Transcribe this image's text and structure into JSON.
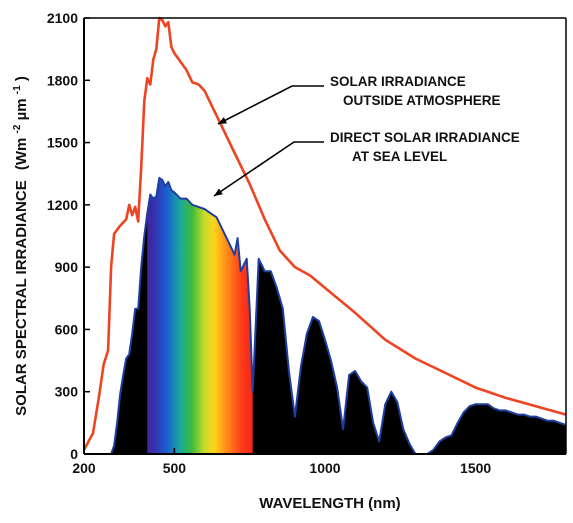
{
  "chart_data": {
    "type": "area",
    "xlabel": "WAVELENGTH (nm)",
    "ylabel": "SOLAR SPECTRAL IRRADIANCE",
    "ylabel_unit": {
      "prefix": "(Wm",
      "exp1": "-2",
      "mid": "µm",
      "exp2": "-1",
      "suffix": ")"
    },
    "xlim": [
      200,
      1800
    ],
    "ylim": [
      0,
      2100
    ],
    "x_ticks": [
      200,
      500,
      1000,
      1500
    ],
    "y_ticks": [
      0,
      300,
      600,
      900,
      1200,
      1500,
      1800,
      2100
    ],
    "colors": {
      "outside": "#ee4422",
      "sea_level": "#000000",
      "sea_level_edge": "#1f3fa0"
    },
    "annotations": [
      {
        "lines": [
          "SOLAR IRRADIANCE",
          "OUTSIDE ATMOSPHERE"
        ],
        "series": "outside"
      },
      {
        "lines": [
          "DIRECT SOLAR IRRADIANCE",
          "AT SEA LEVEL"
        ],
        "series": "sea_level"
      }
    ],
    "series": [
      {
        "id": "outside",
        "x": [
          200,
          215,
          230,
          250,
          265,
          280,
          290,
          300,
          310,
          320,
          340,
          350,
          360,
          370,
          380,
          390,
          400,
          410,
          420,
          430,
          440,
          450,
          460,
          470,
          480,
          490,
          500,
          520,
          540,
          560,
          580,
          600,
          650,
          700,
          750,
          800,
          850,
          900,
          950,
          1000,
          1100,
          1200,
          1300,
          1400,
          1500,
          1600,
          1700,
          1800
        ],
        "y": [
          20,
          60,
          100,
          280,
          430,
          500,
          900,
          1060,
          1080,
          1100,
          1130,
          1200,
          1150,
          1190,
          1120,
          1380,
          1700,
          1810,
          1780,
          1900,
          1950,
          2100,
          2090,
          2060,
          2080,
          1960,
          1930,
          1890,
          1850,
          1790,
          1780,
          1750,
          1600,
          1450,
          1300,
          1130,
          980,
          900,
          860,
          800,
          680,
          550,
          460,
          390,
          320,
          270,
          230,
          190
        ]
      },
      {
        "id": "sea_level",
        "x": [
          290,
          300,
          310,
          320,
          330,
          340,
          350,
          360,
          370,
          380,
          390,
          400,
          410,
          420,
          430,
          440,
          450,
          460,
          470,
          480,
          490,
          500,
          520,
          540,
          560,
          580,
          600,
          620,
          640,
          660,
          680,
          700,
          710,
          720,
          740,
          750,
          760,
          780,
          800,
          820,
          840,
          860,
          880,
          900,
          920,
          940,
          960,
          980,
          1000,
          1020,
          1040,
          1060,
          1080,
          1100,
          1120,
          1140,
          1160,
          1180,
          1200,
          1220,
          1240,
          1260,
          1280,
          1300,
          1320,
          1340,
          1360,
          1380,
          1400,
          1420,
          1440,
          1460,
          1480,
          1500,
          1520,
          1540,
          1560,
          1580,
          1600,
          1620,
          1640,
          1660,
          1680,
          1700,
          1720,
          1740,
          1760,
          1780,
          1800
        ],
        "y": [
          0,
          40,
          150,
          290,
          380,
          460,
          480,
          580,
          700,
          700,
          900,
          1050,
          1160,
          1250,
          1230,
          1240,
          1330,
          1320,
          1290,
          1310,
          1270,
          1260,
          1230,
          1230,
          1200,
          1190,
          1180,
          1160,
          1140,
          1080,
          1020,
          960,
          1040,
          880,
          940,
          700,
          300,
          940,
          880,
          880,
          800,
          700,
          400,
          180,
          420,
          580,
          660,
          640,
          550,
          450,
          320,
          120,
          380,
          400,
          350,
          320,
          150,
          60,
          240,
          300,
          250,
          120,
          50,
          0,
          0,
          0,
          20,
          60,
          80,
          90,
          150,
          200,
          230,
          240,
          240,
          240,
          220,
          210,
          210,
          200,
          190,
          190,
          180,
          180,
          170,
          160,
          160,
          150,
          140
        ]
      }
    ]
  }
}
